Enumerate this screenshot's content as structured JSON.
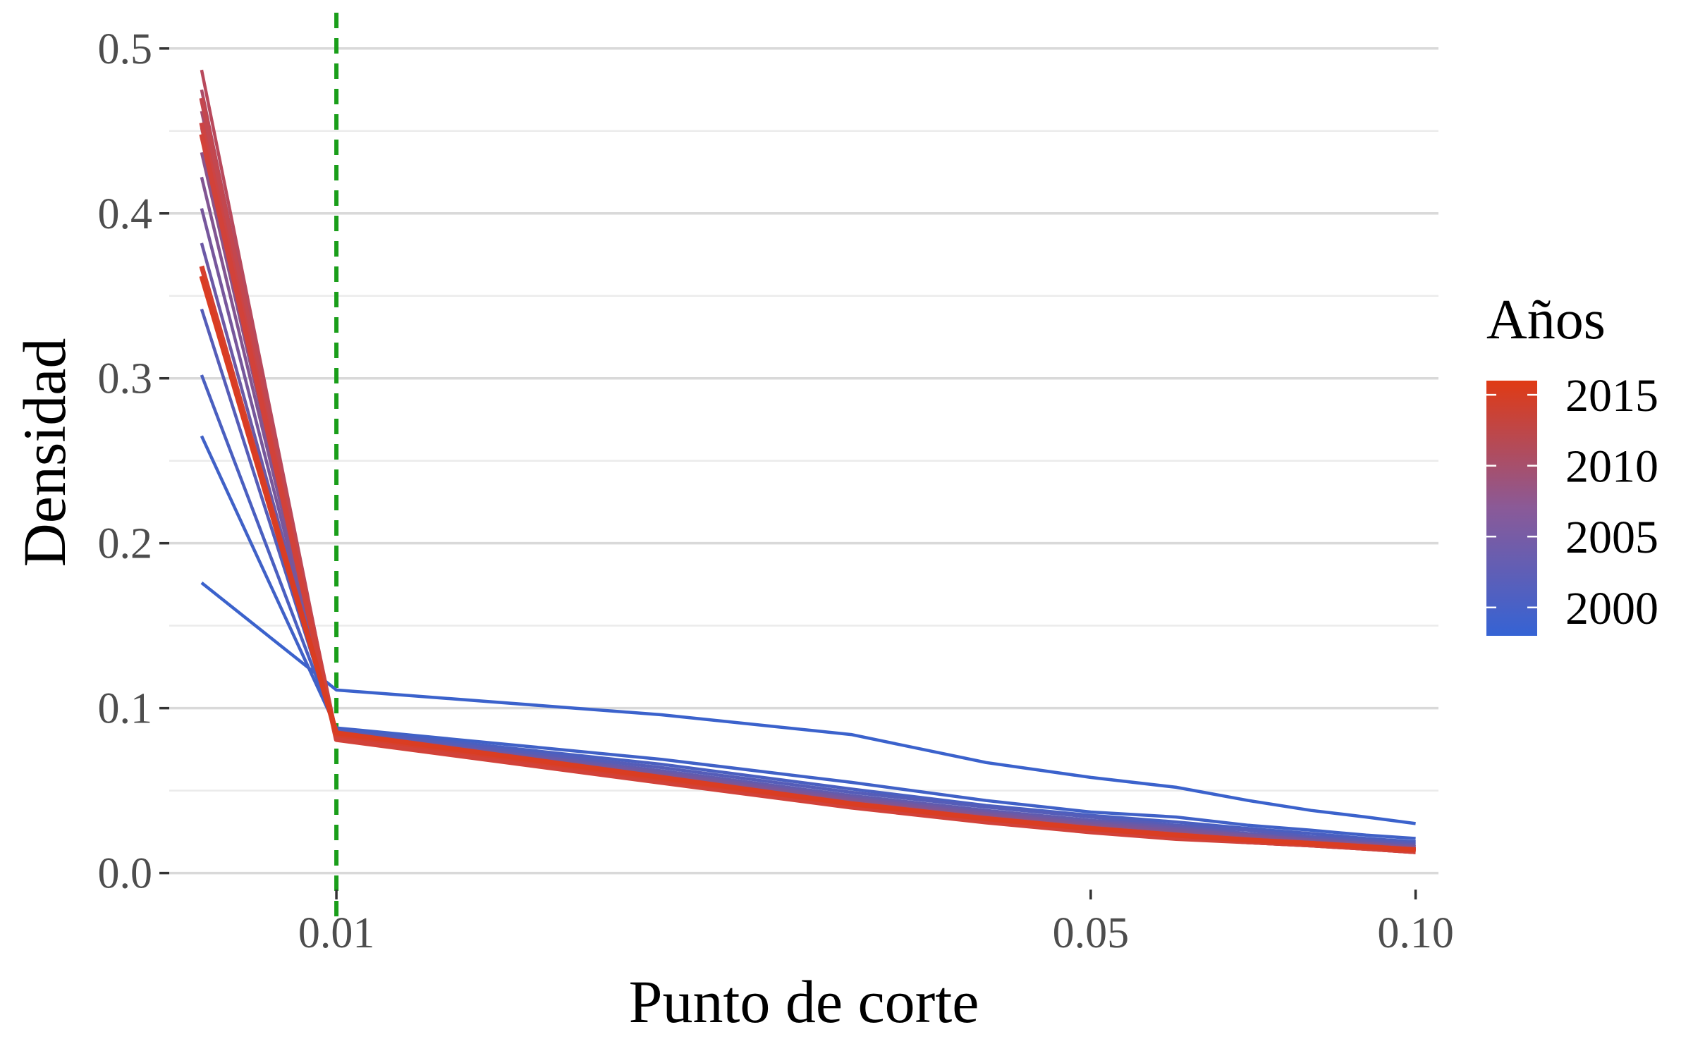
{
  "chart_data": {
    "type": "line",
    "title": "",
    "xlabel": "Punto de corte",
    "ylabel": "Densidad",
    "x_scale": "log10",
    "x_tick_labels": [
      "0.01",
      "0.05",
      "0.10"
    ],
    "x_ticks": [
      0.01,
      0.05,
      0.1
    ],
    "xlim": [
      0.007,
      0.105
    ],
    "ylim": [
      -0.01,
      0.52
    ],
    "y_ticks": [
      0.0,
      0.1,
      0.2,
      0.3,
      0.4,
      0.5
    ],
    "y_tick_labels": [
      "0.0",
      "0.1",
      "0.2",
      "0.3",
      "0.4",
      "0.5"
    ],
    "grid": true,
    "reference_line": {
      "x": 0.01,
      "color": "#1a9e1a",
      "style": "dashed"
    },
    "x": [
      0.0075,
      0.01,
      0.02,
      0.03,
      0.04,
      0.05,
      0.06,
      0.07,
      0.08,
      0.09,
      0.1
    ],
    "series": [
      {
        "year": 1998,
        "color": "#3b62cc",
        "values": [
          0.176,
          0.111,
          0.096,
          0.084,
          0.067,
          0.058,
          0.052,
          0.044,
          0.038,
          0.034,
          0.03
        ]
      },
      {
        "year": 1999,
        "color": "#4061c7",
        "values": [
          0.265,
          0.088,
          0.069,
          0.055,
          0.044,
          0.037,
          0.034,
          0.029,
          0.026,
          0.023,
          0.021
        ]
      },
      {
        "year": 2000,
        "color": "#4a5fc0",
        "values": [
          0.302,
          0.087,
          0.066,
          0.051,
          0.041,
          0.035,
          0.031,
          0.027,
          0.024,
          0.021,
          0.019
        ]
      },
      {
        "year": 2001,
        "color": "#555db8",
        "values": [
          0.342,
          0.086,
          0.064,
          0.049,
          0.04,
          0.034,
          0.029,
          0.026,
          0.022,
          0.02,
          0.018
        ]
      },
      {
        "year": 2002,
        "color": "#605baf",
        "values": [
          0.362,
          0.085,
          0.062,
          0.047,
          0.038,
          0.032,
          0.028,
          0.024,
          0.021,
          0.019,
          0.017
        ]
      },
      {
        "year": 2003,
        "color": "#6b59a6",
        "values": [
          0.382,
          0.085,
          0.061,
          0.046,
          0.037,
          0.031,
          0.027,
          0.023,
          0.02,
          0.018,
          0.016
        ]
      },
      {
        "year": 2004,
        "color": "#76579c",
        "values": [
          0.403,
          0.084,
          0.06,
          0.045,
          0.036,
          0.03,
          0.026,
          0.023,
          0.02,
          0.018,
          0.016
        ]
      },
      {
        "year": 2005,
        "color": "#815592",
        "values": [
          0.422,
          0.084,
          0.059,
          0.044,
          0.035,
          0.029,
          0.025,
          0.022,
          0.019,
          0.017,
          0.015
        ]
      },
      {
        "year": 2006,
        "color": "#8c5388",
        "values": [
          0.437,
          0.083,
          0.058,
          0.043,
          0.034,
          0.028,
          0.024,
          0.021,
          0.019,
          0.017,
          0.015
        ]
      },
      {
        "year": 2007,
        "color": "#97517d",
        "values": [
          0.452,
          0.083,
          0.058,
          0.043,
          0.034,
          0.028,
          0.024,
          0.021,
          0.018,
          0.016,
          0.015
        ]
      },
      {
        "year": 2008,
        "color": "#a24f72",
        "values": [
          0.462,
          0.083,
          0.057,
          0.042,
          0.033,
          0.027,
          0.023,
          0.02,
          0.018,
          0.016,
          0.014
        ]
      },
      {
        "year": 2009,
        "color": "#ad4c67",
        "values": [
          0.475,
          0.082,
          0.057,
          0.042,
          0.033,
          0.027,
          0.023,
          0.02,
          0.018,
          0.016,
          0.014
        ]
      },
      {
        "year": 2010,
        "color": "#b8495c",
        "values": [
          0.487,
          0.082,
          0.056,
          0.041,
          0.032,
          0.026,
          0.022,
          0.02,
          0.017,
          0.015,
          0.014
        ]
      },
      {
        "year": 2011,
        "color": "#c3474f",
        "values": [
          0.47,
          0.082,
          0.056,
          0.041,
          0.032,
          0.026,
          0.022,
          0.019,
          0.017,
          0.015,
          0.013
        ]
      },
      {
        "year": 2012,
        "color": "#cc4444",
        "values": [
          0.455,
          0.082,
          0.056,
          0.041,
          0.032,
          0.026,
          0.022,
          0.019,
          0.017,
          0.015,
          0.013
        ]
      },
      {
        "year": 2013,
        "color": "#d24239",
        "values": [
          0.448,
          0.081,
          0.055,
          0.04,
          0.031,
          0.025,
          0.021,
          0.019,
          0.017,
          0.015,
          0.013
        ]
      },
      {
        "year": 2014,
        "color": "#d6402e",
        "values": [
          0.368,
          0.084,
          0.057,
          0.042,
          0.033,
          0.027,
          0.023,
          0.02,
          0.018,
          0.016,
          0.014
        ]
      },
      {
        "year": 2015,
        "color": "#da3d22",
        "values": [
          0.362,
          0.085,
          0.058,
          0.042,
          0.033,
          0.027,
          0.023,
          0.02,
          0.018,
          0.016,
          0.014
        ]
      }
    ],
    "legend": {
      "title": "Años",
      "position": "right",
      "type": "colorbar",
      "color_low": "#3563d4",
      "color_mid": "#8a5a98",
      "color_high": "#e03a14",
      "range": [
        1998,
        2016
      ],
      "labels": [
        "2015",
        "2010",
        "2005",
        "2000"
      ],
      "label_values": [
        2015,
        2010,
        2005,
        2000
      ]
    }
  }
}
